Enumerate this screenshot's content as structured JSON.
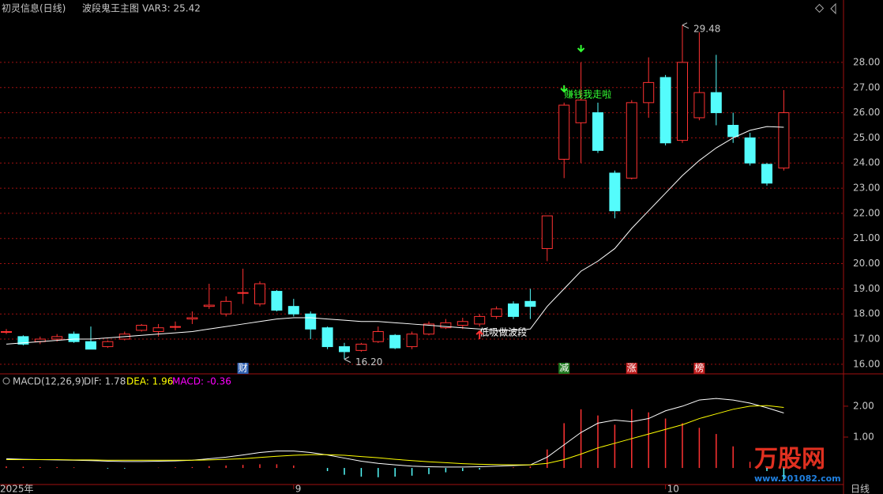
{
  "chart_data": [
    {
      "type": "candlestick",
      "title": "初灵信息(日线)",
      "indicator": "波段鬼王主图",
      "readout": "VAR3: 25.42",
      "open": [
        17.3,
        17.1,
        16.9,
        17.0,
        17.2,
        16.9,
        16.7,
        17.0,
        17.35,
        17.3,
        17.5,
        17.8,
        18.3,
        18.0,
        18.85,
        18.4,
        18.9,
        18.3,
        18.0,
        17.45,
        16.7,
        16.55,
        16.9,
        17.15,
        16.7,
        17.2,
        17.45,
        17.55,
        17.6,
        17.9,
        18.4,
        18.5,
        20.6,
        24.15,
        25.6,
        26.0,
        23.6,
        23.4,
        26.4,
        27.4,
        24.9,
        25.8,
        26.8,
        25.5,
        25.0,
        23.95,
        23.8
      ],
      "close": [
        17.3,
        16.8,
        17.0,
        17.1,
        16.9,
        16.6,
        16.9,
        17.2,
        17.55,
        17.45,
        17.5,
        17.85,
        18.35,
        18.5,
        18.85,
        19.2,
        18.15,
        18.0,
        17.4,
        16.7,
        16.5,
        16.8,
        17.3,
        16.65,
        17.2,
        17.6,
        17.65,
        17.7,
        17.9,
        18.2,
        17.9,
        18.3,
        21.9,
        26.3,
        26.5,
        24.5,
        22.1,
        26.4,
        27.2,
        24.8,
        28.0,
        26.8,
        26.0,
        25.05,
        24.0,
        23.2,
        26.0
      ],
      "high": [
        17.4,
        17.15,
        17.1,
        17.2,
        17.3,
        17.5,
        16.95,
        17.3,
        17.6,
        17.6,
        17.7,
        18.1,
        19.2,
        18.7,
        19.8,
        19.3,
        18.95,
        18.6,
        18.1,
        17.5,
        16.85,
        16.85,
        17.5,
        17.2,
        17.3,
        17.7,
        17.8,
        17.85,
        18.0,
        18.3,
        18.5,
        19.0,
        21.9,
        26.4,
        28.0,
        26.4,
        23.7,
        26.5,
        28.2,
        27.5,
        29.48,
        29.2,
        28.3,
        26.0,
        25.2,
        24.0,
        26.9
      ],
      "low": [
        17.2,
        16.75,
        16.8,
        16.9,
        16.85,
        16.6,
        16.65,
        16.95,
        17.3,
        17.1,
        17.35,
        17.6,
        18.2,
        17.9,
        18.4,
        18.3,
        18.1,
        17.9,
        17.0,
        16.6,
        16.2,
        16.5,
        16.85,
        16.6,
        16.6,
        17.15,
        17.4,
        17.4,
        17.5,
        17.8,
        17.8,
        17.8,
        20.1,
        23.4,
        24.0,
        24.4,
        21.8,
        23.35,
        25.8,
        24.7,
        24.8,
        25.7,
        25.5,
        24.8,
        23.9,
        23.1,
        23.7
      ],
      "ma": [
        16.8,
        16.85,
        16.9,
        16.95,
        17.0,
        17.0,
        17.05,
        17.1,
        17.15,
        17.2,
        17.25,
        17.3,
        17.4,
        17.5,
        17.6,
        17.7,
        17.8,
        17.85,
        17.85,
        17.8,
        17.75,
        17.7,
        17.7,
        17.65,
        17.6,
        17.55,
        17.5,
        17.45,
        17.4,
        17.35,
        17.35,
        17.4,
        18.3,
        19.0,
        19.7,
        20.1,
        20.6,
        21.4,
        22.1,
        22.8,
        23.5,
        24.1,
        24.6,
        25.0,
        25.3,
        25.45,
        25.42
      ],
      "up_color": "#ff3232",
      "down_color": "#54fcfc",
      "ma_color": "#ffffff",
      "ylim": [
        15.65,
        30.48
      ],
      "yticks": [
        {
          "value": 16,
          "label": "16.00"
        },
        {
          "value": 17,
          "label": "17.00"
        },
        {
          "value": 18,
          "label": "18.00"
        },
        {
          "value": 19,
          "label": "19.00"
        },
        {
          "value": 20,
          "label": "20.00"
        },
        {
          "value": 21,
          "label": "21.00"
        },
        {
          "value": 22,
          "label": "22.00"
        },
        {
          "value": 23,
          "label": "23.00"
        },
        {
          "value": 24,
          "label": "24.00"
        },
        {
          "value": 25,
          "label": "25.00"
        },
        {
          "value": 26,
          "label": "26.00"
        },
        {
          "value": 27,
          "label": "27.00"
        },
        {
          "value": 28,
          "label": "28.00"
        }
      ],
      "grid": true,
      "annotations": [
        {
          "text": "29.48",
          "at": 40,
          "kind": "high"
        },
        {
          "text": "16.20",
          "at": 20,
          "kind": "low"
        },
        {
          "text": "赚钱我走啦",
          "at": 33,
          "kind": "sell",
          "color": "#33ff33"
        },
        {
          "text": "低吸做波段",
          "at": 28,
          "kind": "buy",
          "color": "#ffffff"
        }
      ],
      "signals": [
        {
          "at": 34,
          "dir": "down",
          "color": "#33ff33"
        },
        {
          "at": 33,
          "dir": "down",
          "color": "#33ff33"
        },
        {
          "at": 28,
          "dir": "up",
          "color": "#ff3232"
        }
      ],
      "events": [
        {
          "text": "财",
          "at": 14,
          "color": "#3060b0"
        },
        {
          "text": "减",
          "at": 33,
          "color": "#207a20"
        },
        {
          "text": "涨",
          "at": 37,
          "color": "#c02020"
        },
        {
          "text": "榜",
          "at": 41,
          "color": "#c02020"
        }
      ]
    },
    {
      "type": "macd",
      "title": "MACD(12,26,9)",
      "dif_label": "DIF: 1.78",
      "dea_label": "DEA: 1.96",
      "macd_label": "MACD: -0.36",
      "dif": [
        0.3,
        0.28,
        0.27,
        0.26,
        0.25,
        0.24,
        0.22,
        0.21,
        0.21,
        0.22,
        0.23,
        0.25,
        0.3,
        0.35,
        0.42,
        0.5,
        0.55,
        0.55,
        0.5,
        0.42,
        0.32,
        0.22,
        0.15,
        0.1,
        0.06,
        0.04,
        0.03,
        0.03,
        0.04,
        0.06,
        0.08,
        0.1,
        0.35,
        0.75,
        1.15,
        1.45,
        1.55,
        1.5,
        1.6,
        1.85,
        2.0,
        2.2,
        2.25,
        2.2,
        2.1,
        1.95,
        1.78
      ],
      "dea": [
        0.27,
        0.27,
        0.27,
        0.27,
        0.26,
        0.26,
        0.25,
        0.25,
        0.25,
        0.25,
        0.25,
        0.25,
        0.26,
        0.28,
        0.3,
        0.34,
        0.38,
        0.41,
        0.43,
        0.43,
        0.41,
        0.37,
        0.33,
        0.28,
        0.24,
        0.2,
        0.17,
        0.14,
        0.12,
        0.11,
        0.1,
        0.1,
        0.15,
        0.27,
        0.45,
        0.65,
        0.8,
        0.95,
        1.1,
        1.25,
        1.4,
        1.6,
        1.75,
        1.9,
        2.0,
        2.02,
        1.96
      ],
      "macd": [
        0.05,
        0.04,
        0.03,
        0.03,
        0.02,
        0.0,
        -0.02,
        -0.02,
        0.0,
        0.01,
        0.02,
        0.03,
        0.06,
        0.08,
        0.1,
        0.12,
        0.12,
        0.08,
        0.0,
        -0.1,
        -0.22,
        -0.28,
        -0.3,
        -0.28,
        -0.25,
        -0.2,
        -0.14,
        -0.1,
        -0.05,
        0.0,
        0.02,
        0.05,
        0.6,
        1.45,
        1.9,
        1.7,
        1.4,
        1.9,
        1.8,
        1.6,
        1.45,
        1.3,
        1.1,
        0.7,
        0.2,
        -0.1,
        -0.36
      ],
      "dif_color": "#ffffff",
      "dea_color": "#ffff00",
      "macd_color": "#ff00ff",
      "pos_color": "#ff3232",
      "neg_color": "#54fcfc",
      "ylim": [
        -0.51,
        2.97
      ],
      "yticks": [
        {
          "value": 1,
          "label": "1.00"
        },
        {
          "value": 2,
          "label": "2.00"
        }
      ]
    }
  ],
  "x_axis": {
    "labels": [
      {
        "text": "2025年",
        "at": 0
      },
      {
        "text": "9",
        "at": 17
      },
      {
        "text": "10",
        "at": 39
      }
    ],
    "period": "日线"
  },
  "watermark": {
    "brand": "万股网",
    "url": "www.201082.com"
  }
}
